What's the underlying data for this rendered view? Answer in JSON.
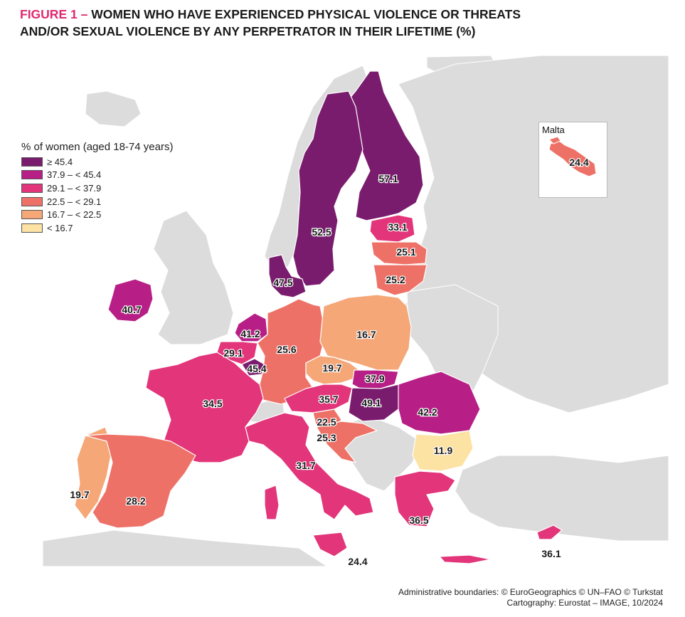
{
  "title": {
    "prefix": "FIGURE 1 –",
    "line1": "WOMEN WHO HAVE EXPERIENCED PHYSICAL VIOLENCE OR THREATS",
    "line2": "AND/OR SEXUAL VIOLENCE BY ANY PERPETRATOR IN THEIR LIFETIME (%)"
  },
  "legend": {
    "title": "% of women (aged 18-74 years)",
    "classes": [
      {
        "label": "≥ 45.4",
        "color": "#7a1c6e"
      },
      {
        "label": "37.9 – < 45.4",
        "color": "#b81f86"
      },
      {
        "label": "29.1 – < 37.9",
        "color": "#e2357a"
      },
      {
        "label": "22.5 – < 29.1",
        "color": "#ee7167"
      },
      {
        "label": "16.7 – < 22.5",
        "color": "#f5a778"
      },
      {
        "label": "< 16.7",
        "color": "#fce2a3"
      }
    ]
  },
  "colors": {
    "sea": "#ffffff",
    "non_eu_land": "#dcdcdc",
    "border": "#ffffff"
  },
  "inset": {
    "title": "Malta",
    "value": "24.4"
  },
  "countries": [
    {
      "id": "FI",
      "value": "57.1"
    },
    {
      "id": "SE",
      "value": "52.5"
    },
    {
      "id": "EE",
      "value": "33.1"
    },
    {
      "id": "LV",
      "value": "25.1"
    },
    {
      "id": "LT",
      "value": "25.2"
    },
    {
      "id": "DK",
      "value": "47.5"
    },
    {
      "id": "IE",
      "value": "40.7"
    },
    {
      "id": "NL",
      "value": "41.2"
    },
    {
      "id": "BE",
      "value": "29.1"
    },
    {
      "id": "LU",
      "value": "45.4"
    },
    {
      "id": "DE",
      "value": "25.6"
    },
    {
      "id": "PL",
      "value": "16.7"
    },
    {
      "id": "CZ",
      "value": "19.7"
    },
    {
      "id": "SK",
      "value": "37.9"
    },
    {
      "id": "AT",
      "value": "35.7"
    },
    {
      "id": "HU",
      "value": "49.1"
    },
    {
      "id": "RO",
      "value": "42.2"
    },
    {
      "id": "FR",
      "value": "34.5"
    },
    {
      "id": "SI",
      "value": "22.5"
    },
    {
      "id": "HR",
      "value": "25.3"
    },
    {
      "id": "BG",
      "value": "11.9"
    },
    {
      "id": "PT",
      "value": "19.7"
    },
    {
      "id": "ES",
      "value": "28.2"
    },
    {
      "id": "IT",
      "value": "31.7"
    },
    {
      "id": "EL",
      "value": "36.5"
    },
    {
      "id": "CY",
      "value": "36.1"
    },
    {
      "id": "SICILY",
      "value": "24.4"
    }
  ],
  "credits": {
    "line1": "Administrative boundaries: © EuroGeographics © UN–FAO © Turkstat",
    "line2": "Cartography: Eurostat – IMAGE, 10/2024"
  }
}
